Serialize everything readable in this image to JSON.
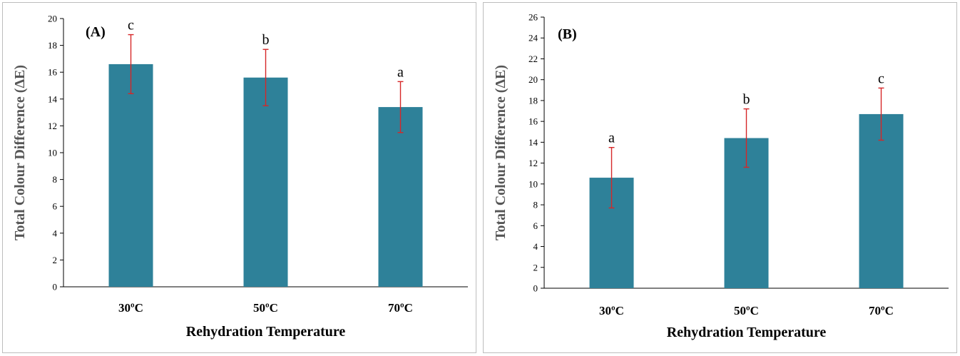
{
  "chart_data": [
    {
      "type": "bar",
      "panel_label": "(A)",
      "categories": [
        "30ºC",
        "50ºC",
        "70ºC"
      ],
      "values": [
        16.6,
        15.6,
        13.4
      ],
      "errors": [
        2.2,
        2.1,
        1.9
      ],
      "significance": [
        "c",
        "b",
        "a"
      ],
      "xlabel": "Rehydration Temperature",
      "ylabel": "Total Colour Difference (ΔE)",
      "ylim": [
        0,
        20
      ],
      "ystep": 2,
      "yticks": [
        "0",
        "2",
        "4",
        "6",
        "8",
        "10",
        "12",
        "14",
        "16",
        "18",
        "20"
      ],
      "grid": false,
      "bar_color": "#2e8199",
      "error_color": "#d62728"
    },
    {
      "type": "bar",
      "panel_label": "(B)",
      "categories": [
        "30ºC",
        "50ºC",
        "70ºC"
      ],
      "values": [
        10.6,
        14.4,
        16.7
      ],
      "errors": [
        2.9,
        2.8,
        2.5
      ],
      "significance": [
        "a",
        "b",
        "c"
      ],
      "xlabel": "Rehydration Temperature",
      "ylabel": "Total Colour Difference (ΔE)",
      "ylim": [
        0,
        26
      ],
      "ystep": 2,
      "yticks": [
        "0",
        "2",
        "4",
        "6",
        "8",
        "10",
        "12",
        "14",
        "16",
        "18",
        "20",
        "22",
        "24",
        "26"
      ],
      "grid": false,
      "bar_color": "#2e8199",
      "error_color": "#d62728"
    }
  ]
}
